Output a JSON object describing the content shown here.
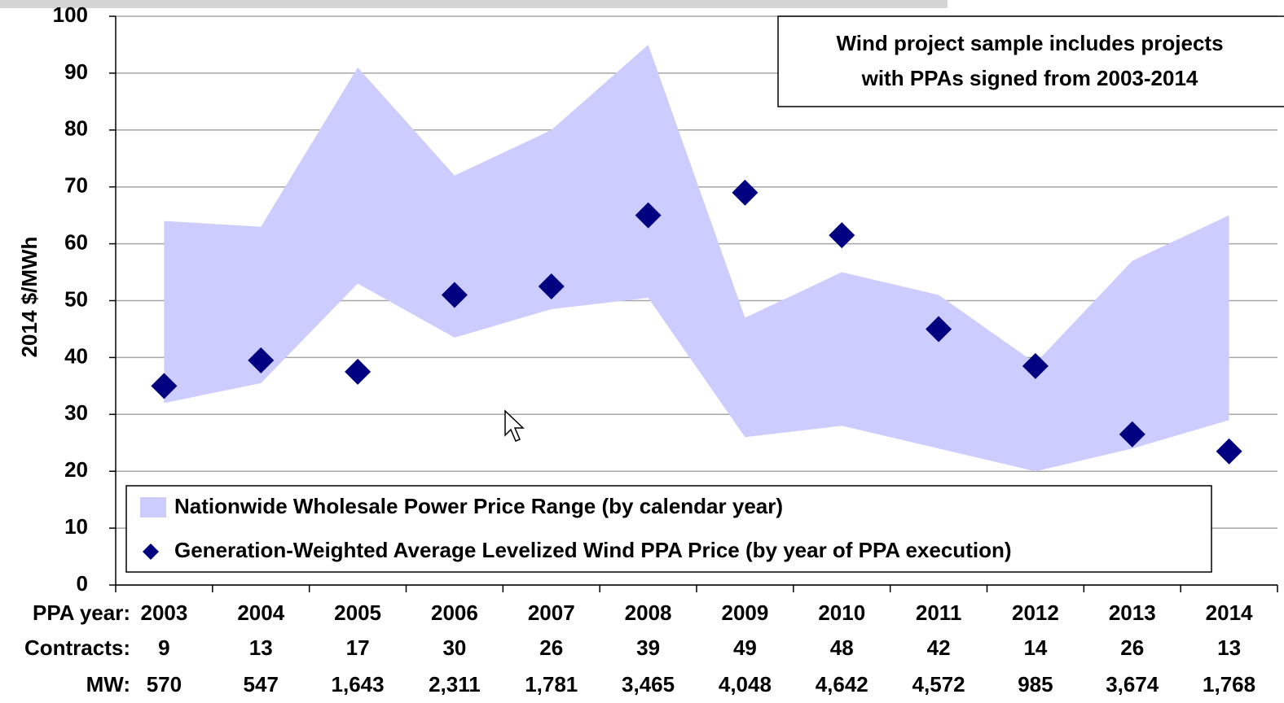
{
  "chart_data": {
    "type": "range_scatter",
    "y_label": "2014 $/MWh",
    "annotation": [
      "Wind project sample includes projects",
      "with PPAs signed from 2003-2014"
    ],
    "category_row_label": "PPA year:",
    "categories": [
      "2003",
      "2004",
      "2005",
      "2006",
      "2007",
      "2008",
      "2009",
      "2010",
      "2011",
      "2012",
      "2013",
      "2014"
    ],
    "rows": [
      {
        "label": "Contracts:",
        "values": [
          9,
          13,
          17,
          30,
          26,
          39,
          49,
          48,
          42,
          14,
          26,
          13
        ]
      },
      {
        "label": "MW:",
        "values": [
          "570",
          "547",
          "1,643",
          "2,311",
          "1,781",
          "3,465",
          "4,048",
          "4,642",
          "4,572",
          "985",
          "3,674",
          "1,768"
        ]
      }
    ],
    "series": [
      {
        "name": "Nationwide Wholesale Power Price Range (by calendar year)",
        "color": "#ccccff",
        "kind": "band",
        "high": [
          64,
          63,
          91,
          72,
          80,
          95,
          47,
          55,
          51,
          39,
          57,
          65
        ],
        "low": [
          32,
          35.5,
          53,
          43.5,
          48.5,
          50.5,
          26,
          28,
          24,
          20,
          24,
          29
        ]
      },
      {
        "name": "Generation-Weighted Average Levelized Wind PPA Price (by year of PPA execution)",
        "color": "#000080",
        "kind": "diamond",
        "values": [
          35,
          39.5,
          37.5,
          51,
          52.5,
          65,
          69,
          61.5,
          45,
          38.5,
          26.5,
          23.5
        ]
      }
    ],
    "ylim": [
      0,
      100
    ],
    "yticks": [
      0,
      10,
      20,
      30,
      40,
      50,
      60,
      70,
      80,
      90,
      100
    ],
    "grid": true
  }
}
